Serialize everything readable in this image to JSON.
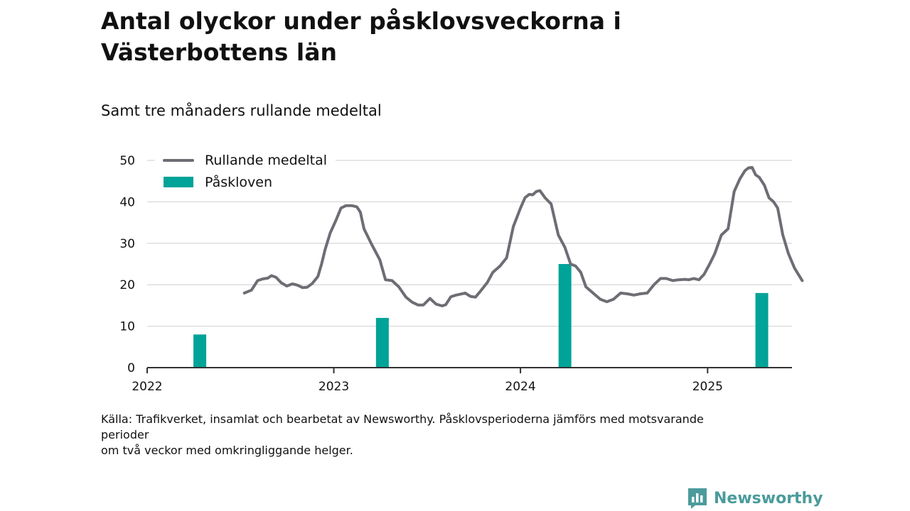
{
  "header": {
    "title": "Antal olyckor under påsklovsveckorna i Västerbottens län",
    "subtitle": "Samt tre månaders rullande medeltal"
  },
  "footer": {
    "source_lines": [
      "Källa: Trafikverket, insamlat och bearbetat av Newsworthy. Påsklovsperioderna jämförs med motsvarande",
      "perioder",
      "om två veckor med omkringliggande helger."
    ],
    "brand": "Newsworthy"
  },
  "colors": {
    "line": "#6e6d74",
    "bar": "#00a398",
    "grid": "#dddddd",
    "brand": "#4b9b9b"
  },
  "chart_data": {
    "type": "bar+line",
    "x_axis": {
      "type": "date",
      "range": [
        "2022-01-01",
        "2025-06-15"
      ],
      "tick_labels": [
        "2022",
        "2023",
        "2024",
        "2025"
      ],
      "tick_dates": [
        "2022-01-01",
        "2023-01-01",
        "2024-01-01",
        "2025-01-01"
      ]
    },
    "y_axis": {
      "range": [
        0,
        50
      ],
      "ticks": [
        0,
        10,
        20,
        30,
        40,
        50
      ]
    },
    "grid": "horizontal",
    "legend": {
      "position": "top-left",
      "entries": [
        "Rullande medeltal",
        "Påskloven"
      ]
    },
    "series": [
      {
        "name": "Rullande medeltal",
        "type": "line",
        "points": [
          [
            "2022-07-10",
            18.0
          ],
          [
            "2022-07-24",
            18.7
          ],
          [
            "2022-08-05",
            21.0
          ],
          [
            "2022-08-15",
            21.4
          ],
          [
            "2022-08-25",
            21.6
          ],
          [
            "2022-09-01",
            22.2
          ],
          [
            "2022-09-10",
            21.8
          ],
          [
            "2022-09-20",
            20.5
          ],
          [
            "2022-10-01",
            19.7
          ],
          [
            "2022-10-12",
            20.2
          ],
          [
            "2022-10-22",
            19.9
          ],
          [
            "2022-11-01",
            19.3
          ],
          [
            "2022-11-10",
            19.4
          ],
          [
            "2022-11-20",
            20.3
          ],
          [
            "2022-12-01",
            22.0
          ],
          [
            "2022-12-08",
            25.0
          ],
          [
            "2022-12-15",
            28.5
          ],
          [
            "2022-12-25",
            32.5
          ],
          [
            "2023-01-05",
            35.5
          ],
          [
            "2023-01-15",
            38.5
          ],
          [
            "2023-01-25",
            39.1
          ],
          [
            "2023-02-05",
            39.1
          ],
          [
            "2023-02-15",
            38.8
          ],
          [
            "2023-02-22",
            37.5
          ],
          [
            "2023-03-01",
            33.5
          ],
          [
            "2023-03-15",
            30.0
          ],
          [
            "2023-04-01",
            26.0
          ],
          [
            "2023-04-12",
            21.2
          ],
          [
            "2023-04-25",
            21.0
          ],
          [
            "2023-05-08",
            19.5
          ],
          [
            "2023-05-22",
            17.0
          ],
          [
            "2023-06-03",
            15.8
          ],
          [
            "2023-06-15",
            15.1
          ],
          [
            "2023-06-25",
            15.1
          ],
          [
            "2023-07-08",
            16.7
          ],
          [
            "2023-07-20",
            15.3
          ],
          [
            "2023-08-01",
            14.9
          ],
          [
            "2023-08-08",
            15.2
          ],
          [
            "2023-08-18",
            17.1
          ],
          [
            "2023-08-28",
            17.5
          ],
          [
            "2023-09-05",
            17.7
          ],
          [
            "2023-09-15",
            18.0
          ],
          [
            "2023-09-25",
            17.2
          ],
          [
            "2023-10-05",
            17.0
          ],
          [
            "2023-10-15",
            18.5
          ],
          [
            "2023-10-28",
            20.5
          ],
          [
            "2023-11-08",
            23.0
          ],
          [
            "2023-11-22",
            24.5
          ],
          [
            "2023-12-05",
            26.5
          ],
          [
            "2023-12-18",
            34.0
          ],
          [
            "2024-01-01",
            38.5
          ],
          [
            "2024-01-10",
            41.0
          ],
          [
            "2024-01-18",
            41.8
          ],
          [
            "2024-01-25",
            41.7
          ],
          [
            "2024-02-01",
            42.5
          ],
          [
            "2024-02-08",
            42.7
          ],
          [
            "2024-02-18",
            41.0
          ],
          [
            "2024-03-01",
            39.5
          ],
          [
            "2024-03-15",
            32.0
          ],
          [
            "2024-03-28",
            29.0
          ],
          [
            "2024-04-08",
            25.0
          ],
          [
            "2024-04-18",
            24.5
          ],
          [
            "2024-04-28",
            23.0
          ],
          [
            "2024-05-08",
            19.5
          ],
          [
            "2024-05-22",
            18.0
          ],
          [
            "2024-06-05",
            16.5
          ],
          [
            "2024-06-18",
            15.9
          ],
          [
            "2024-07-01",
            16.5
          ],
          [
            "2024-07-15",
            18.0
          ],
          [
            "2024-07-28",
            17.8
          ],
          [
            "2024-08-10",
            17.5
          ],
          [
            "2024-08-22",
            17.8
          ],
          [
            "2024-09-05",
            18.0
          ],
          [
            "2024-09-18",
            20.0
          ],
          [
            "2024-10-01",
            21.5
          ],
          [
            "2024-10-12",
            21.5
          ],
          [
            "2024-10-25",
            21.0
          ],
          [
            "2024-11-05",
            21.2
          ],
          [
            "2024-11-18",
            21.3
          ],
          [
            "2024-11-25",
            21.2
          ],
          [
            "2024-12-05",
            21.5
          ],
          [
            "2024-12-15",
            21.2
          ],
          [
            "2024-12-25",
            22.5
          ],
          [
            "2025-01-05",
            25.0
          ],
          [
            "2025-01-15",
            27.5
          ],
          [
            "2025-01-28",
            32.0
          ],
          [
            "2025-02-10",
            33.5
          ],
          [
            "2025-02-22",
            42.5
          ],
          [
            "2025-03-05",
            45.5
          ],
          [
            "2025-03-15",
            47.5
          ],
          [
            "2025-03-22",
            48.2
          ],
          [
            "2025-03-29",
            48.3
          ],
          [
            "2025-04-05",
            46.5
          ],
          [
            "2025-04-12",
            45.9
          ],
          [
            "2025-04-22",
            44.0
          ],
          [
            "2025-05-01",
            41.0
          ],
          [
            "2025-05-10",
            40.0
          ],
          [
            "2025-05-18",
            38.5
          ],
          [
            "2025-05-28",
            32.0
          ],
          [
            "2025-06-08",
            27.5
          ],
          [
            "2025-06-20",
            24.0
          ],
          [
            "2025-07-05",
            21.0
          ]
        ]
      },
      {
        "name": "Påskloven",
        "type": "bar",
        "points": [
          [
            "2022-04-14",
            8
          ],
          [
            "2023-04-06",
            12
          ],
          [
            "2024-03-28",
            25
          ],
          [
            "2025-04-17",
            18
          ]
        ]
      }
    ]
  }
}
